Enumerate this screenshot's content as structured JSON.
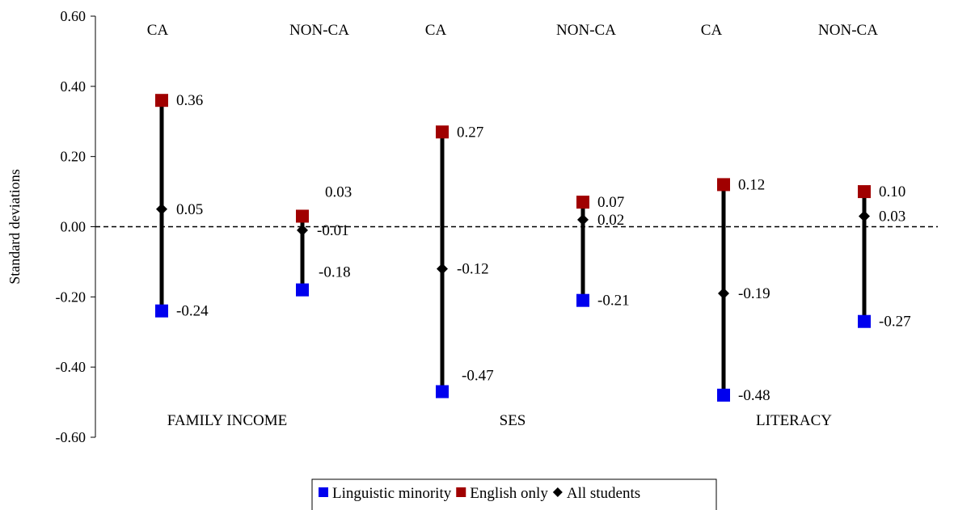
{
  "chart_data": {
    "type": "range",
    "ylabel": "Standard deviations",
    "ylim": [
      -0.6,
      0.6
    ],
    "yticks": [
      "0.60",
      "0.40",
      "0.20",
      "0.00",
      "-0.20",
      "-0.40",
      "-0.60"
    ],
    "reference_line": {
      "y": 0.0,
      "style": "dashed"
    },
    "groups": [
      {
        "label": "FAMILY INCOME",
        "subgroups": [
          "CA",
          "NON-CA"
        ]
      },
      {
        "label": "SES",
        "subgroups": [
          "CA",
          "NON-CA"
        ]
      },
      {
        "label": "LITERACY",
        "subgroups": [
          "CA",
          "NON-CA"
        ]
      }
    ],
    "series": [
      {
        "name": "Linguistic minority",
        "marker": "square",
        "color": "#0000ee",
        "values": [
          -0.24,
          -0.18,
          -0.47,
          -0.21,
          -0.48,
          -0.27
        ],
        "labels": [
          "-0.24",
          "-0.18",
          "-0.47",
          "-0.21",
          "-0.48",
          "-0.27"
        ]
      },
      {
        "name": "English only",
        "marker": "square",
        "color": "#a00000",
        "values": [
          0.36,
          0.03,
          0.27,
          0.07,
          0.12,
          0.1
        ],
        "labels": [
          "0.36",
          "0.03",
          "0.27",
          "0.07",
          "0.12",
          "0.10"
        ]
      },
      {
        "name": "All students",
        "marker": "diamond",
        "color": "#000000",
        "values": [
          0.05,
          -0.01,
          -0.12,
          0.02,
          -0.19,
          0.03
        ],
        "labels": [
          "0.05",
          "-0.01",
          "-0.12",
          "0.02",
          "-0.19",
          "0.03"
        ]
      }
    ],
    "legend": {
      "position": "bottom-center"
    },
    "grid": false
  }
}
